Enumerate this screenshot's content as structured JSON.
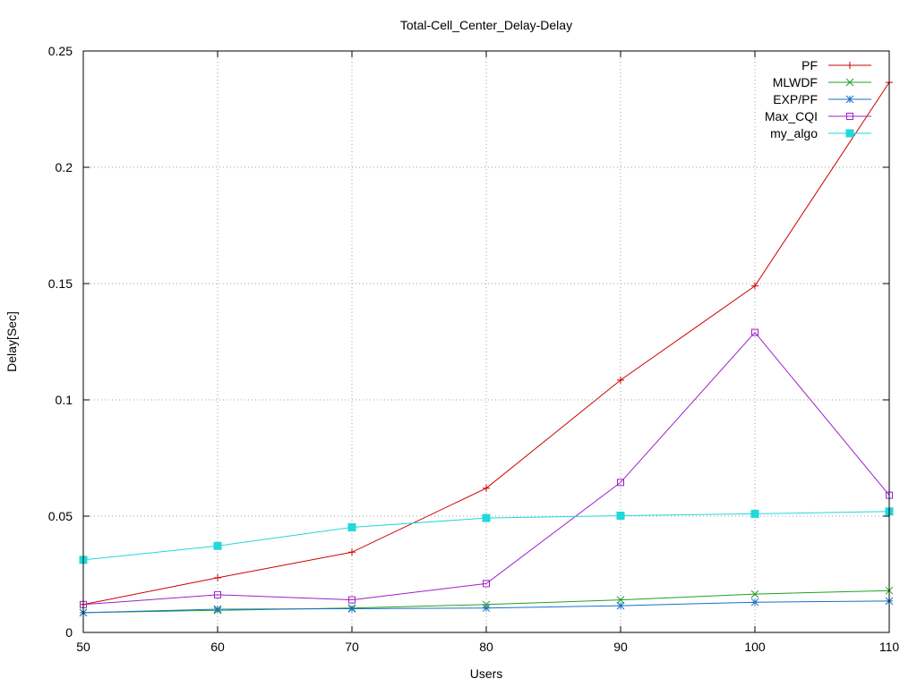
{
  "chart_data": {
    "type": "line",
    "title": "Total-Cell_Center_Delay-Delay",
    "xlabel": "Users",
    "ylabel": "Delay[Sec]",
    "xlim": [
      50,
      110
    ],
    "ylim": [
      0,
      0.25
    ],
    "xticks": [
      50,
      60,
      70,
      80,
      90,
      100,
      110
    ],
    "yticks": [
      0,
      0.05,
      0.1,
      0.15,
      0.2,
      0.25
    ],
    "ytick_labels": [
      "0",
      "0.05",
      "0.1",
      "0.15",
      "0.2",
      "0.25"
    ],
    "grid": true,
    "legend_position": "top-right",
    "x": [
      50,
      60,
      70,
      80,
      90,
      100,
      110
    ],
    "series": [
      {
        "name": "PF",
        "color": "#cc0000",
        "marker": "plus",
        "values": [
          0.012,
          0.0235,
          0.0345,
          0.062,
          0.1085,
          0.149,
          0.2365
        ]
      },
      {
        "name": "MLWDF",
        "color": "#22a022",
        "marker": "cross",
        "values": [
          0.0085,
          0.0095,
          0.0105,
          0.012,
          0.014,
          0.0165,
          0.018
        ]
      },
      {
        "name": "EXP/PF",
        "color": "#1a70c8",
        "marker": "star",
        "values": [
          0.0085,
          0.01,
          0.0102,
          0.0105,
          0.0115,
          0.013,
          0.0135
        ]
      },
      {
        "name": "Max_CQI",
        "color": "#a020c8",
        "marker": "open-square",
        "values": [
          0.012,
          0.0162,
          0.014,
          0.021,
          0.0645,
          0.129,
          0.059
        ]
      },
      {
        "name": "my_algo",
        "color": "#22d8d8",
        "marker": "filled-square",
        "values": [
          0.0312,
          0.0372,
          0.0452,
          0.0492,
          0.0502,
          0.051,
          0.052
        ]
      }
    ]
  }
}
